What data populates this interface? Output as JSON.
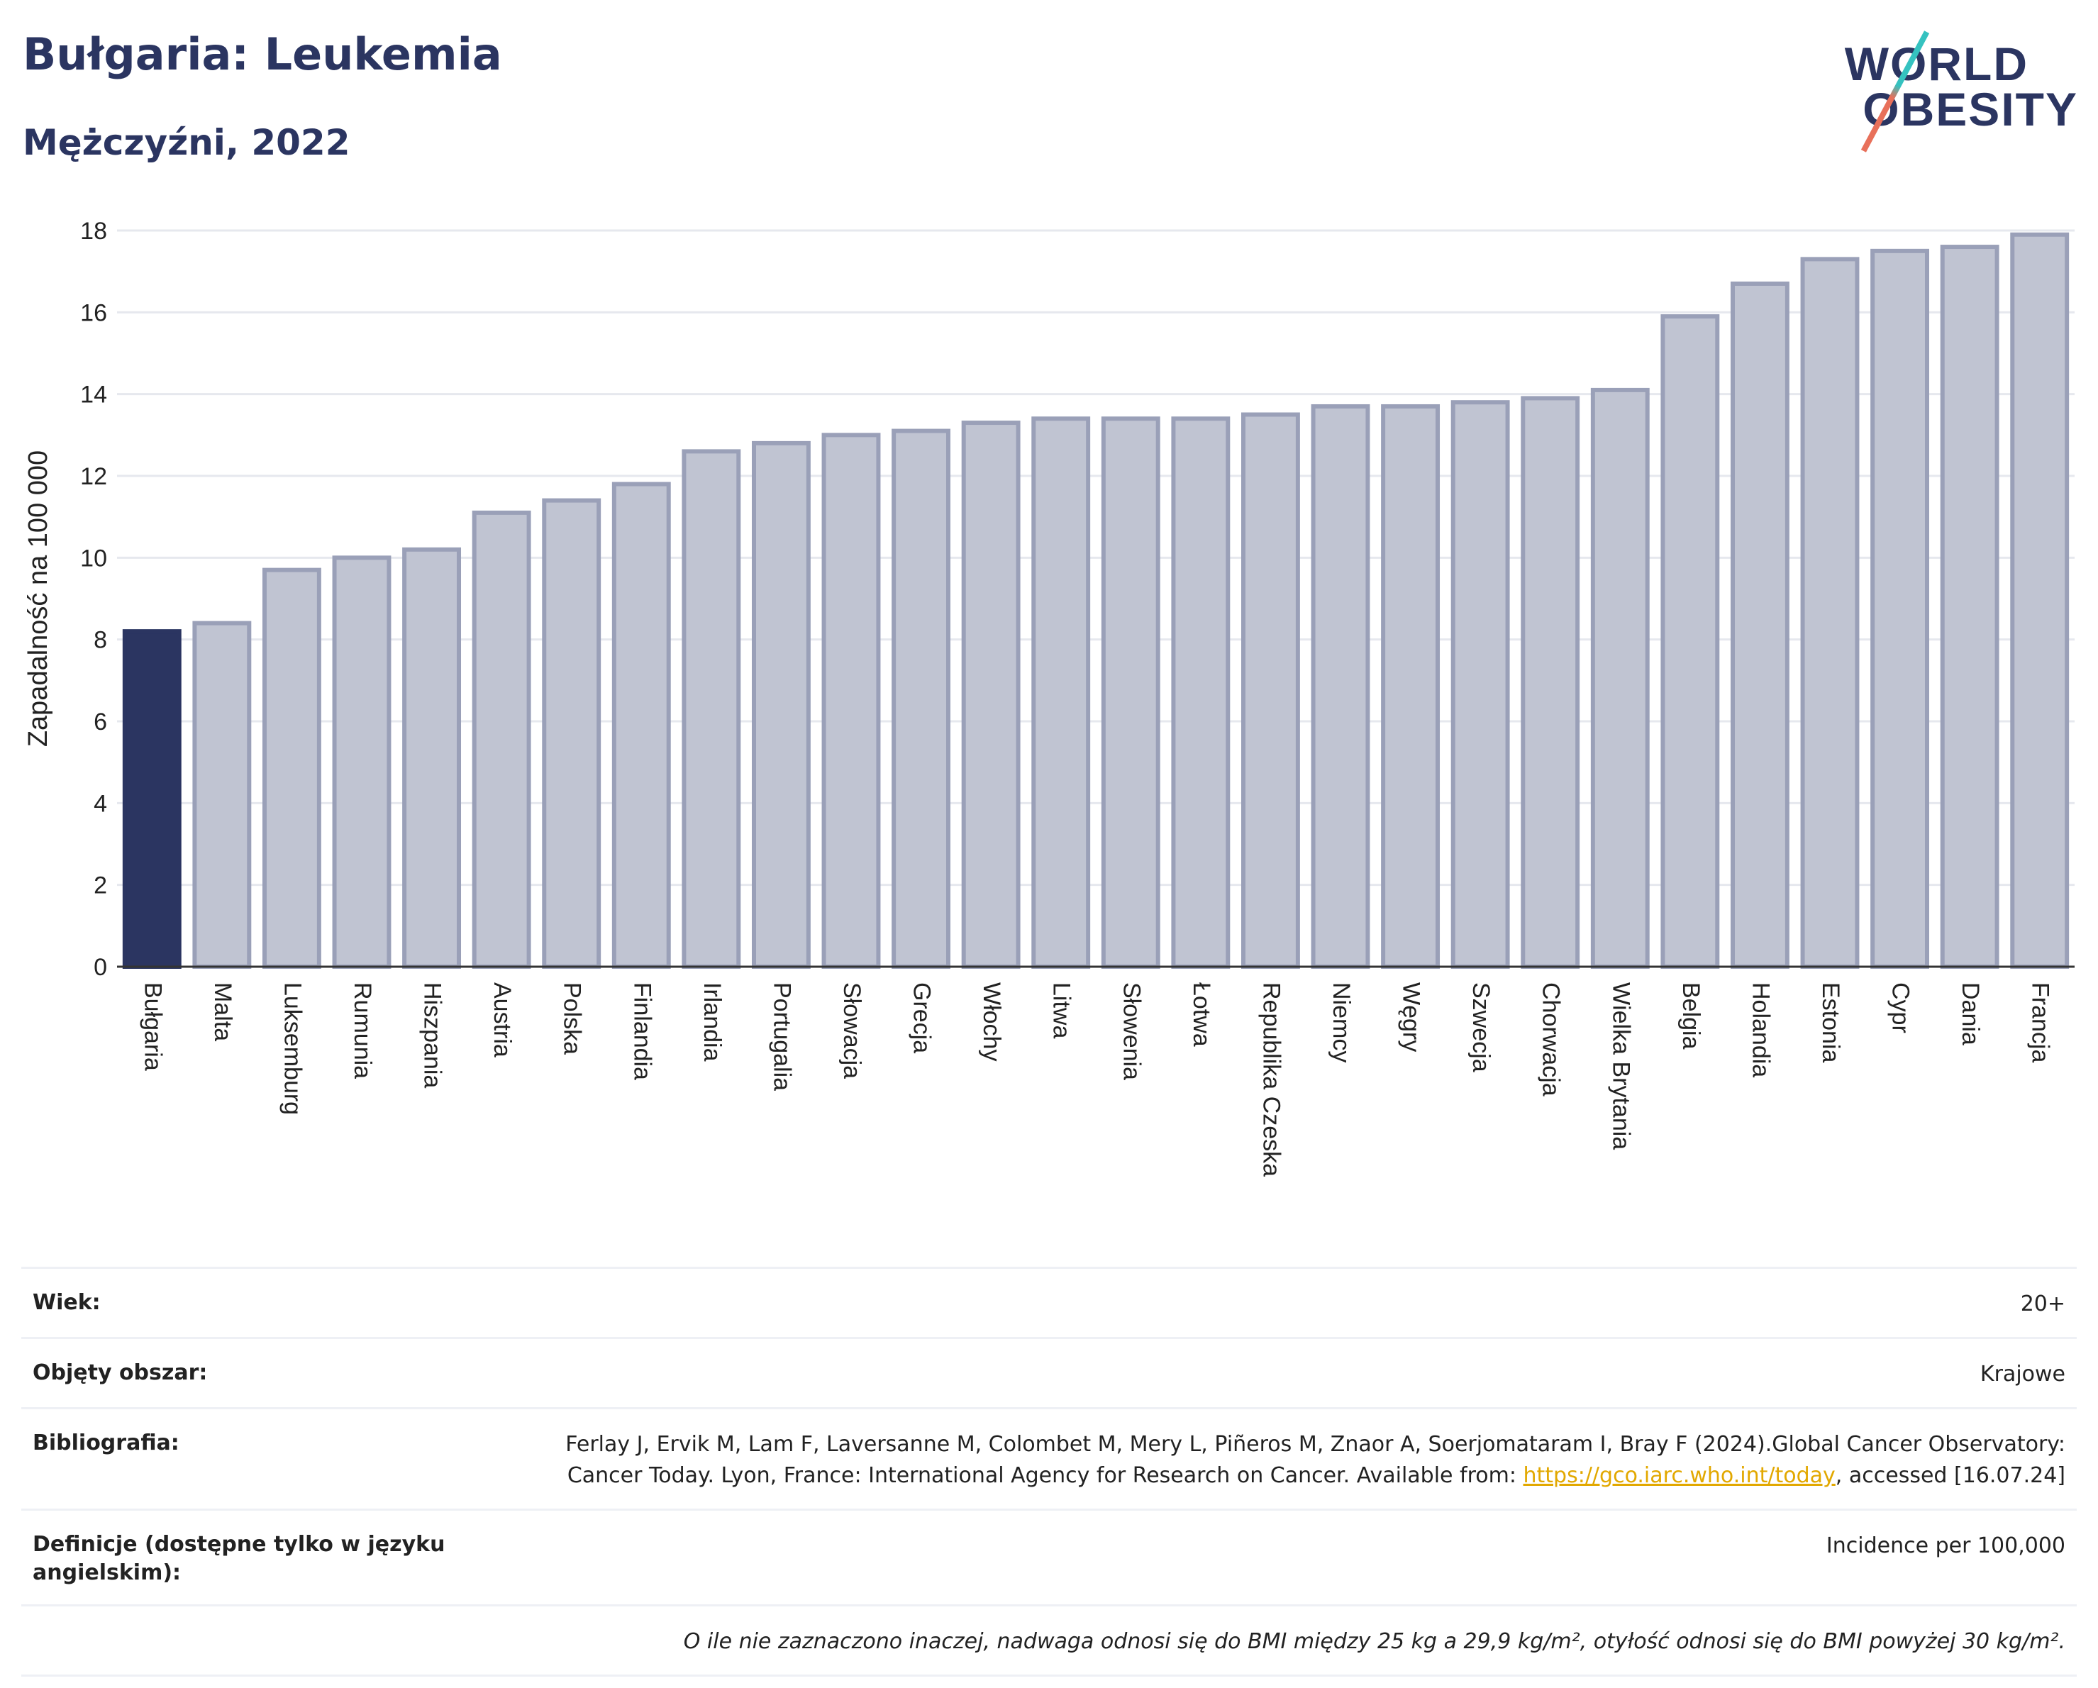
{
  "header": {
    "title": "Bułgaria: Leukemia",
    "subtitle": "Mężczyźni, 2022",
    "logo_line1": "WORLD",
    "logo_line2": "OBESITY"
  },
  "chart_data": {
    "type": "bar",
    "title": "Bułgaria: Leukemia",
    "subtitle": "Mężczyźni, 2022",
    "ylabel": "Zapadalność na 100 000",
    "xlabel": "",
    "ylim": [
      0,
      18
    ],
    "yticks": [
      0,
      2,
      4,
      6,
      8,
      10,
      12,
      14,
      16,
      18
    ],
    "grid": true,
    "highlight_category": "Bułgaria",
    "colors": {
      "highlight": "#2b3561",
      "bar_fill": "#c0c4d2",
      "bar_stroke": "#9aa0b8",
      "grid": "#e6e8ee"
    },
    "categories": [
      "Bułgaria",
      "Malta",
      "Luksemburg",
      "Rumunia",
      "Hiszpania",
      "Austria",
      "Polska",
      "Finlandia",
      "Irlandia",
      "Portugalia",
      "Słowacja",
      "Grecja",
      "Włochy",
      "Litwa",
      "Słowenia",
      "Łotwa",
      "Republika Czeska",
      "Niemcy",
      "Węgry",
      "Szwecja",
      "Chorwacja",
      "Wielka Brytania",
      "Belgia",
      "Holandia",
      "Estonia",
      "Cypr",
      "Dania",
      "Francja"
    ],
    "values": [
      8.2,
      8.4,
      9.7,
      10.0,
      10.2,
      11.1,
      11.4,
      11.8,
      12.6,
      12.8,
      13.0,
      13.1,
      13.3,
      13.4,
      13.4,
      13.4,
      13.5,
      13.7,
      13.7,
      13.8,
      13.9,
      14.1,
      15.9,
      16.7,
      17.3,
      17.5,
      17.6,
      17.9
    ]
  },
  "info": {
    "age_label": "Wiek:",
    "age_value": "20+",
    "coverage_label": "Objęty obszar:",
    "coverage_value": "Krajowe",
    "biblio_label": "Bibliografia:",
    "biblio_text": "Ferlay J, Ervik M, Lam F, Laversanne M, Colombet M, Mery L, Piñeros M, Znaor A, Soerjomataram I, Bray F (2024).Global Cancer Observatory: Cancer Today. Lyon, France: International Agency for Research on Cancer. Available from: ",
    "biblio_link": "https://gco.iarc.who.int/today",
    "biblio_tail": ", accessed [16.07.24]",
    "definitions_label": "Definicje (dostępne tylko w języku angielskim):",
    "definitions_value": "Incidence per 100,000",
    "note": "O ile nie zaznaczono inaczej, nadwaga odnosi się do BMI między 25 kg a 29,9 kg/m², otyłość odnosi się do BMI powyżej 30 kg/m²."
  }
}
